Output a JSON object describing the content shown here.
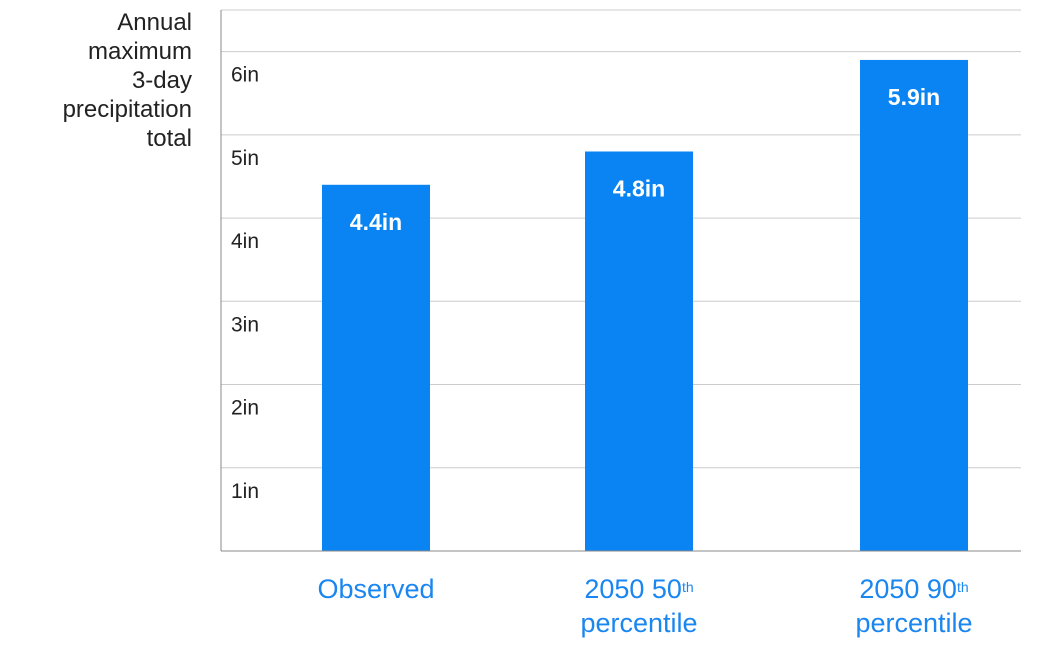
{
  "chart_data": {
    "type": "bar",
    "title": "",
    "ylabel": "Annual\nmaximum\n3-day\nprecipitation\ntotal",
    "xlabel": "",
    "ylim": [
      0,
      6.5
    ],
    "y_ticks": [
      {
        "value": 1,
        "label": "1in"
      },
      {
        "value": 2,
        "label": "2in"
      },
      {
        "value": 3,
        "label": "3in"
      },
      {
        "value": 4,
        "label": "4in"
      },
      {
        "value": 5,
        "label": "5in"
      },
      {
        "value": 6,
        "label": "6in"
      }
    ],
    "categories": [
      {
        "main": "Observed",
        "sup": "",
        "line2": ""
      },
      {
        "main": "2050 50",
        "sup": "th",
        "line2": "percentile"
      },
      {
        "main": "2050 90",
        "sup": "th",
        "line2": "percentile"
      }
    ],
    "values": [
      4.4,
      4.8,
      5.9
    ],
    "data_labels": [
      "4.4in",
      "4.8in",
      "5.9in"
    ],
    "grid": true,
    "colors": {
      "bar": "#0a84f2",
      "category_text": "#1a86f0",
      "grid": "#cccccc",
      "axis": "#888888"
    }
  }
}
